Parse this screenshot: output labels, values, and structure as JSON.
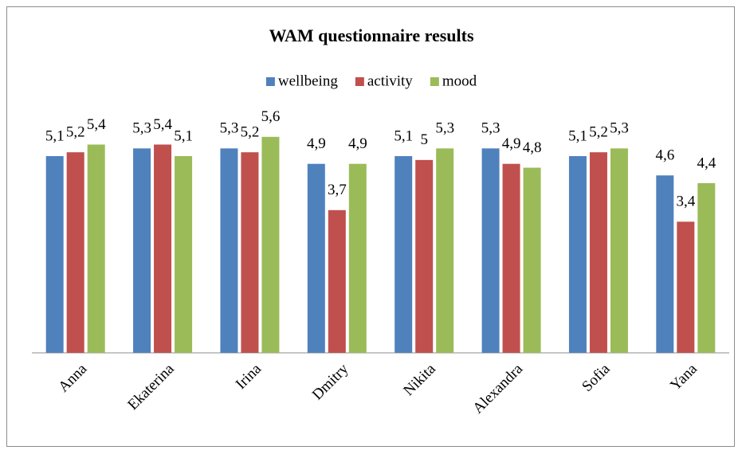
{
  "chart_data": {
    "type": "bar",
    "title": "WAM questionnaire results",
    "categories": [
      "Anna",
      "Ekaterina",
      "Irina",
      "Dmitry",
      "Nikita",
      "Alexandra",
      "Sofia",
      "Yana"
    ],
    "series": [
      {
        "name": "wellbeing",
        "color": "#4f81bd",
        "values": [
          5.1,
          5.3,
          5.3,
          4.9,
          5.1,
          5.3,
          5.1,
          4.6
        ],
        "value_labels": [
          "5,1",
          "5,3",
          "5,3",
          "4,9",
          "5,1",
          "5,3",
          "5,1",
          "4,6"
        ]
      },
      {
        "name": "activity",
        "color": "#c0504d",
        "values": [
          5.2,
          5.4,
          5.2,
          3.7,
          5,
          4.9,
          5.2,
          3.4
        ],
        "value_labels": [
          "5,2",
          "5,4",
          "5,2",
          "3,7",
          "5",
          "4,9",
          "5,2",
          "3,4"
        ]
      },
      {
        "name": "mood",
        "color": "#9bbb59",
        "values": [
          5.4,
          5.1,
          5.6,
          4.9,
          5.3,
          4.8,
          5.3,
          4.4
        ],
        "value_labels": [
          "5,4",
          "5,1",
          "5,6",
          "4,9",
          "5,3",
          "4,8",
          "5,3",
          "4,4"
        ]
      }
    ],
    "ylim": [
      0,
      7
    ],
    "legend": "top"
  }
}
